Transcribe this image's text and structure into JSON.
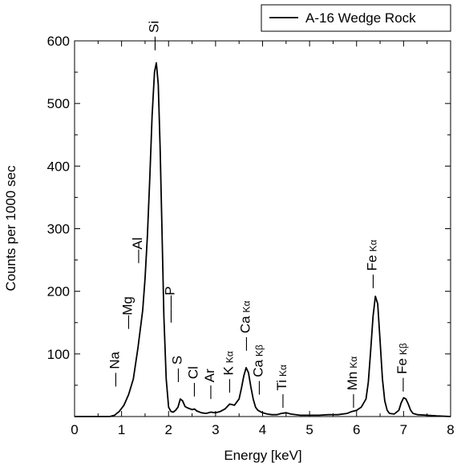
{
  "chart_data": {
    "type": "line",
    "xlabel": "Energy [keV]",
    "ylabel": "Counts per 1000 sec",
    "xlim": [
      0,
      8
    ],
    "ylim": [
      0,
      600
    ],
    "x_ticks": [
      {
        "v": 0,
        "label": "0"
      },
      {
        "v": 1,
        "label": "1"
      },
      {
        "v": 2,
        "label": "2"
      },
      {
        "v": 3,
        "label": "3"
      },
      {
        "v": 4,
        "label": "4"
      },
      {
        "v": 5,
        "label": "5"
      },
      {
        "v": 6,
        "label": "6"
      },
      {
        "v": 7,
        "label": "7"
      },
      {
        "v": 8,
        "label": "8"
      }
    ],
    "y_ticks": [
      {
        "v": 100,
        "label": "100"
      },
      {
        "v": 200,
        "label": "200"
      },
      {
        "v": 300,
        "label": "300"
      },
      {
        "v": 400,
        "label": "400"
      },
      {
        "v": 500,
        "label": "500"
      },
      {
        "v": 600,
        "label": "600"
      }
    ],
    "legend": {
      "position": "top-right",
      "entries": [
        "A-16 Wedge Rock"
      ]
    },
    "series": [
      {
        "name": "A-16 Wedge Rock",
        "color": "#000000",
        "x": [
          0.75,
          0.85,
          0.95,
          1.05,
          1.15,
          1.25,
          1.35,
          1.45,
          1.5,
          1.55,
          1.6,
          1.65,
          1.7,
          1.74,
          1.78,
          1.82,
          1.86,
          1.9,
          1.95,
          2.0,
          2.05,
          2.1,
          2.15,
          2.2,
          2.25,
          2.3,
          2.35,
          2.4,
          2.5,
          2.55,
          2.6,
          2.7,
          2.8,
          2.9,
          3.0,
          3.1,
          3.2,
          3.3,
          3.4,
          3.5,
          3.55,
          3.6,
          3.65,
          3.7,
          3.75,
          3.8,
          3.85,
          3.9,
          4.0,
          4.1,
          4.2,
          4.3,
          4.4,
          4.5,
          4.6,
          4.8,
          5.0,
          5.2,
          5.4,
          5.6,
          5.8,
          5.9,
          6.0,
          6.1,
          6.2,
          6.25,
          6.3,
          6.35,
          6.4,
          6.45,
          6.5,
          6.55,
          6.6,
          6.65,
          6.7,
          6.8,
          6.9,
          6.95,
          7.0,
          7.05,
          7.1,
          7.15,
          7.2,
          7.3,
          7.5,
          7.7,
          8.0
        ],
        "y": [
          0,
          2,
          8,
          18,
          35,
          60,
          110,
          170,
          220,
          290,
          380,
          480,
          550,
          565,
          530,
          430,
          300,
          160,
          60,
          15,
          8,
          7,
          10,
          15,
          28,
          25,
          16,
          14,
          11,
          12,
          9,
          6,
          5,
          7,
          6,
          8,
          12,
          20,
          18,
          28,
          45,
          65,
          78,
          70,
          48,
          28,
          15,
          10,
          6,
          4,
          3,
          3,
          5,
          6,
          4,
          2,
          2,
          2,
          3,
          3,
          5,
          8,
          10,
          15,
          28,
          55,
          105,
          160,
          192,
          180,
          120,
          60,
          25,
          10,
          5,
          4,
          10,
          22,
          30,
          28,
          20,
          10,
          5,
          3,
          2,
          1,
          0
        ]
      }
    ],
    "annotations": [
      {
        "text": "Na",
        "sub": "",
        "x": 0.95,
        "y": 48,
        "rot": -90,
        "prefix": "— "
      },
      {
        "text": "Mg",
        "sub": "",
        "x": 1.22,
        "y": 140,
        "rot": -90,
        "prefix": "—"
      },
      {
        "text": "Al",
        "sub": "",
        "x": 1.43,
        "y": 245,
        "rot": -90,
        "prefix": "—"
      },
      {
        "text": "Si",
        "sub": "",
        "x": 1.78,
        "y": 585,
        "rot": -90,
        "prefix": "— "
      },
      {
        "text": "P",
        "sub": "",
        "x": 2.12,
        "y": 150,
        "rot": -90,
        "prefix": "——"
      },
      {
        "text": "S",
        "sub": "",
        "x": 2.28,
        "y": 55,
        "rot": -90,
        "prefix": "— "
      },
      {
        "text": "Cl",
        "sub": "",
        "x": 2.62,
        "y": 32,
        "rot": -90,
        "prefix": "— "
      },
      {
        "text": "Ar",
        "sub": "",
        "x": 2.97,
        "y": 28,
        "rot": -90,
        "prefix": "— "
      },
      {
        "text": "K",
        "sub": "Kα",
        "x": 3.37,
        "y": 38,
        "rot": -90,
        "prefix": "— "
      },
      {
        "text": "Ca",
        "sub": "Kα",
        "x": 3.73,
        "y": 105,
        "rot": -90,
        "prefix": "— "
      },
      {
        "text": "Ca",
        "sub": "Kβ",
        "x": 4.0,
        "y": 35,
        "rot": -90,
        "prefix": "— "
      },
      {
        "text": "Ti",
        "sub": "Kα",
        "x": 4.5,
        "y": 14,
        "rot": -90,
        "prefix": "— "
      },
      {
        "text": "Mn",
        "sub": "Kα",
        "x": 6.0,
        "y": 14,
        "rot": -90,
        "prefix": "— "
      },
      {
        "text": "Fe",
        "sub": "Kα",
        "x": 6.42,
        "y": 205,
        "rot": -90,
        "prefix": "— "
      },
      {
        "text": "Fe",
        "sub": "Kβ",
        "x": 7.06,
        "y": 40,
        "rot": -90,
        "prefix": "— "
      }
    ]
  }
}
